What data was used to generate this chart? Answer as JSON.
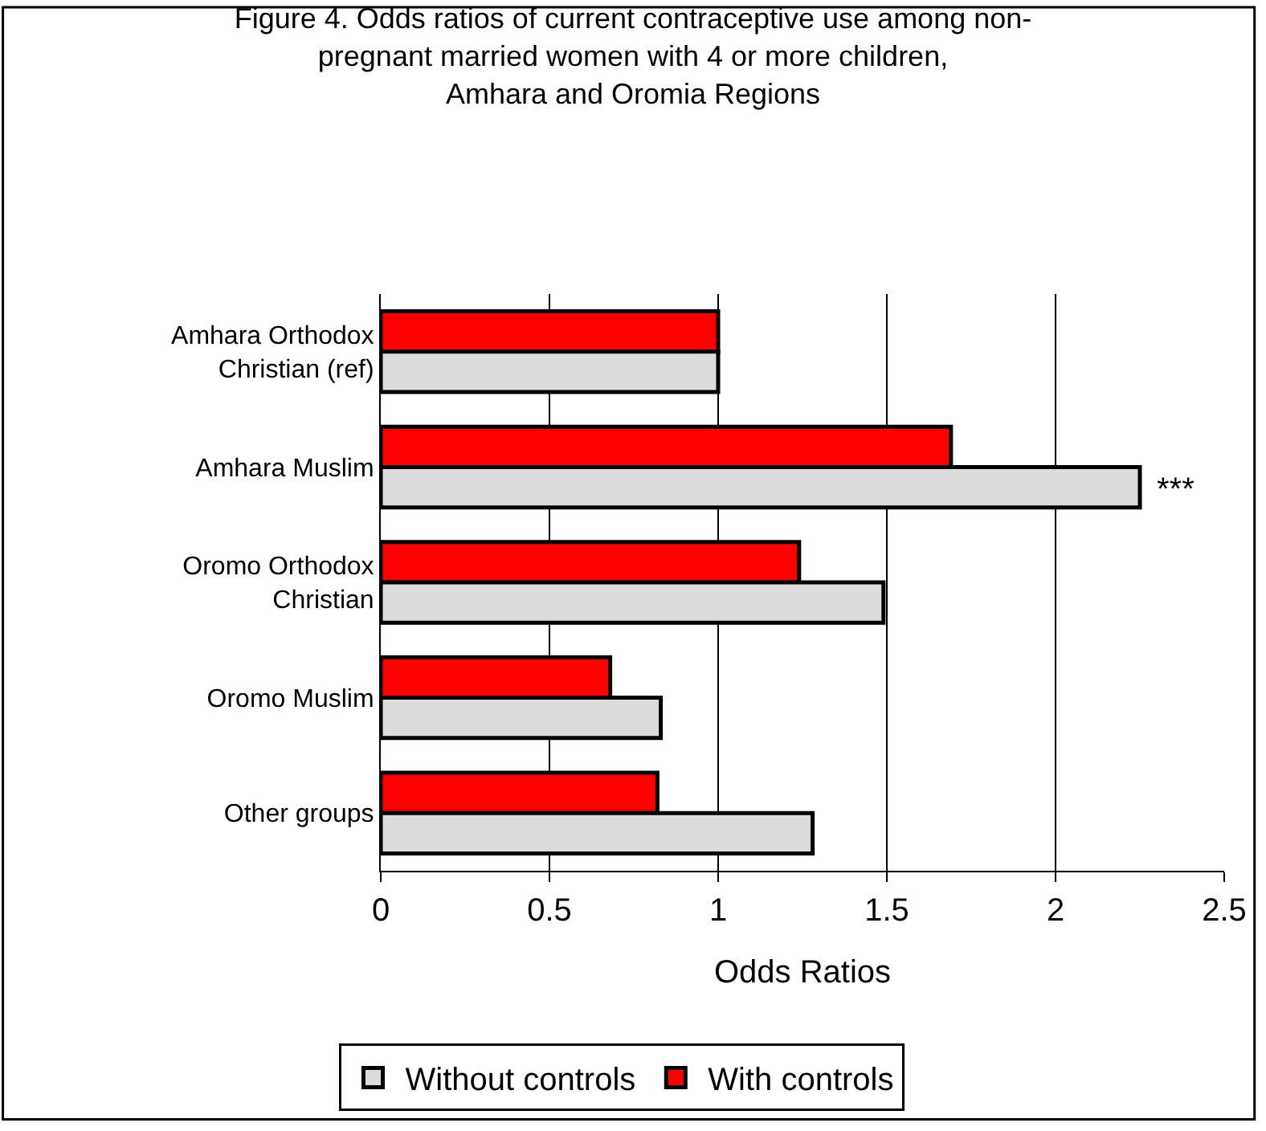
{
  "chart_data": {
    "type": "bar",
    "orientation": "horizontal",
    "title": "Figure 4. Odds ratios of current contraceptive use among non-\npregnant married women with 4 or more children,\nAmhara and Oromia Regions",
    "xlabel": "Odds Ratios",
    "categories": [
      "Amhara Orthodox\nChristian (ref)",
      "Amhara Muslim",
      "Oromo Orthodox\nChristian",
      "Oromo Muslim",
      "Other groups"
    ],
    "series": [
      {
        "name": "Without controls",
        "color": "#dcdcdc",
        "values": [
          1.0,
          2.25,
          1.49,
          0.83,
          1.28
        ]
      },
      {
        "name": "With controls",
        "color": "#ff0000",
        "values": [
          1.0,
          1.69,
          1.24,
          0.68,
          0.82
        ]
      }
    ],
    "xlim": [
      0,
      2.5
    ],
    "xticks": [
      0,
      0.5,
      1,
      1.5,
      2,
      2.5
    ],
    "grid": "x",
    "legend": "bottom",
    "annotations": [
      {
        "text": "***",
        "x": 2.25,
        "y": "Amhara Muslim"
      }
    ]
  }
}
